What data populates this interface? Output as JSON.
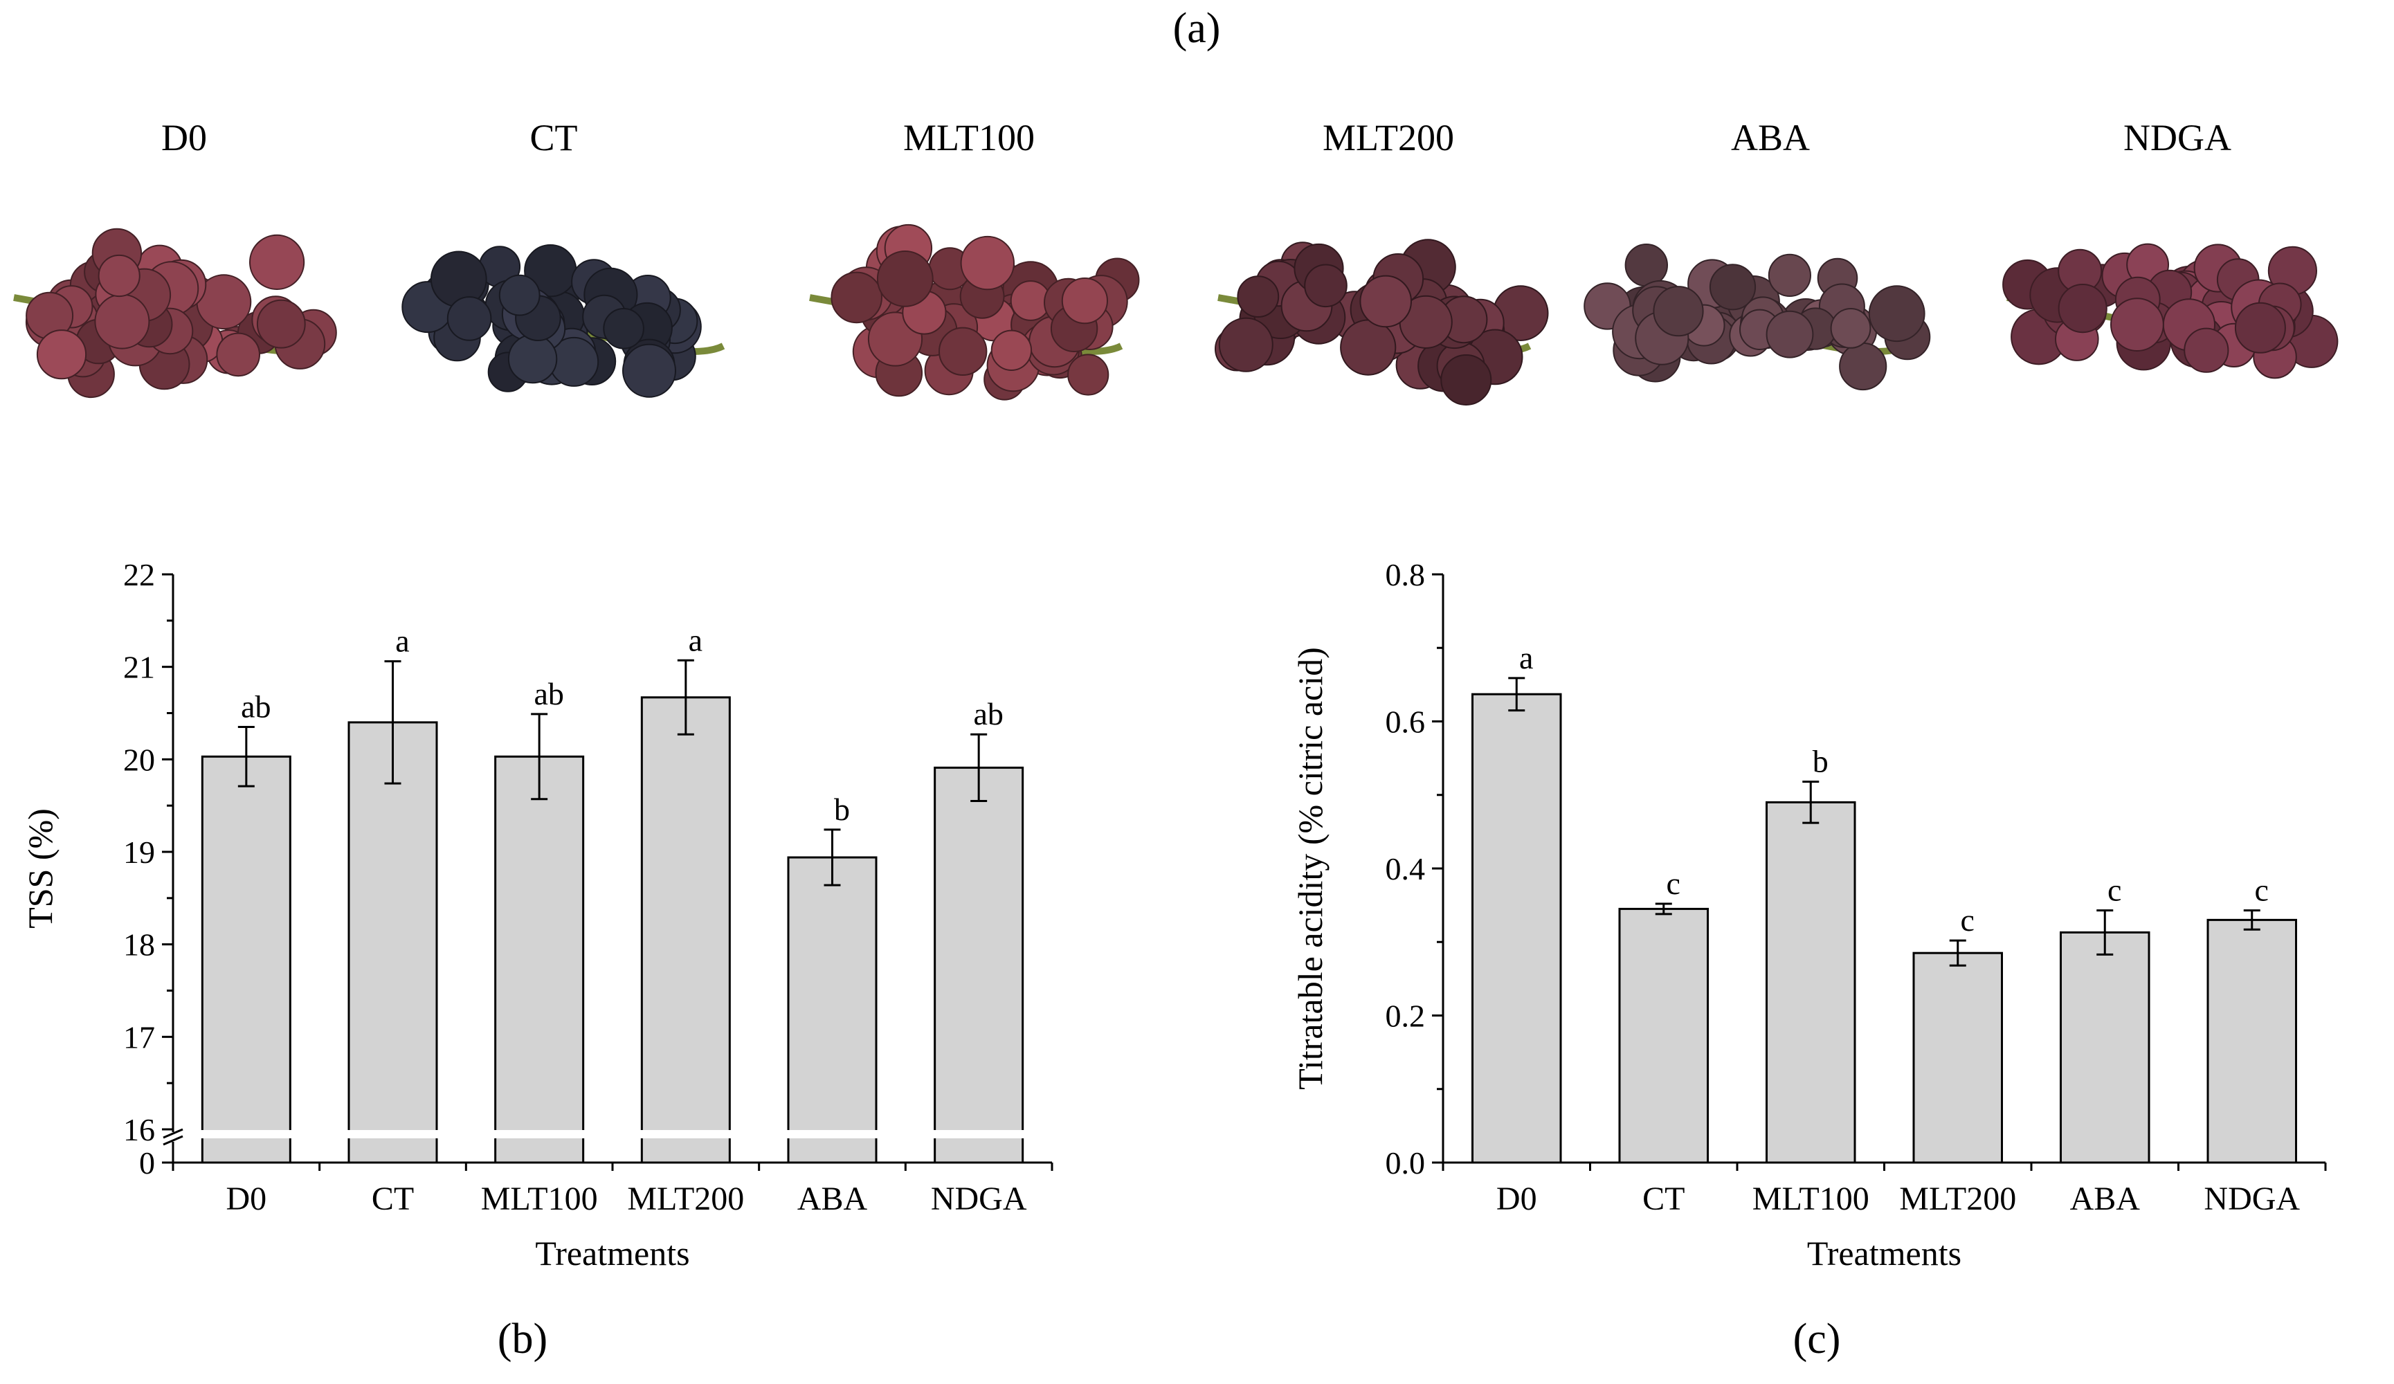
{
  "panel_a": {
    "label": "(a)",
    "photos": [
      {
        "label": "D0",
        "tone": "#7a3a45"
      },
      {
        "label": "CT",
        "tone": "#2c2e3c"
      },
      {
        "label": "MLT100",
        "tone": "#7c3a44"
      },
      {
        "label": "MLT200",
        "tone": "#5a2e38"
      },
      {
        "label": "ABA",
        "tone": "#5e4048"
      },
      {
        "label": "NDGA",
        "tone": "#6e3444"
      }
    ]
  },
  "colors": {
    "bar_fill": "#d3d3d3",
    "stem": "#7a8a3a",
    "axis": "#000000"
  },
  "chart_data": [
    {
      "id": "b",
      "panel_label": "(b)",
      "type": "bar",
      "categories": [
        "D0",
        "CT",
        "MLT100",
        "MLT200",
        "ABA",
        "NDGA"
      ],
      "values": [
        20.03,
        20.4,
        20.03,
        20.67,
        18.94,
        19.91
      ],
      "errors": [
        0.32,
        0.66,
        0.46,
        0.4,
        0.3,
        0.36
      ],
      "letters": [
        "ab",
        "a",
        "ab",
        "a",
        "b",
        "ab"
      ],
      "xlabel": "Treatments",
      "ylabel": "TSS (%)",
      "ylim": [
        16,
        22
      ],
      "yticks": [
        "16",
        "17",
        "18",
        "19",
        "20",
        "21",
        "22"
      ],
      "axis_break": true,
      "break_tick": "0"
    },
    {
      "id": "c",
      "panel_label": "(c)",
      "type": "bar",
      "categories": [
        "D0",
        "CT",
        "MLT100",
        "MLT200",
        "ABA",
        "NDGA"
      ],
      "values": [
        0.637,
        0.345,
        0.49,
        0.285,
        0.313,
        0.33
      ],
      "errors": [
        0.022,
        0.007,
        0.028,
        0.017,
        0.03,
        0.013
      ],
      "letters": [
        "a",
        "c",
        "b",
        "c",
        "c",
        "c"
      ],
      "xlabel": "Treatments",
      "ylabel": "Titratable acidity (% citric acid)",
      "ylim": [
        0,
        0.8
      ],
      "yticks": [
        "0.0",
        "0.2",
        "0.4",
        "0.6",
        "0.8"
      ],
      "axis_break": false
    }
  ]
}
